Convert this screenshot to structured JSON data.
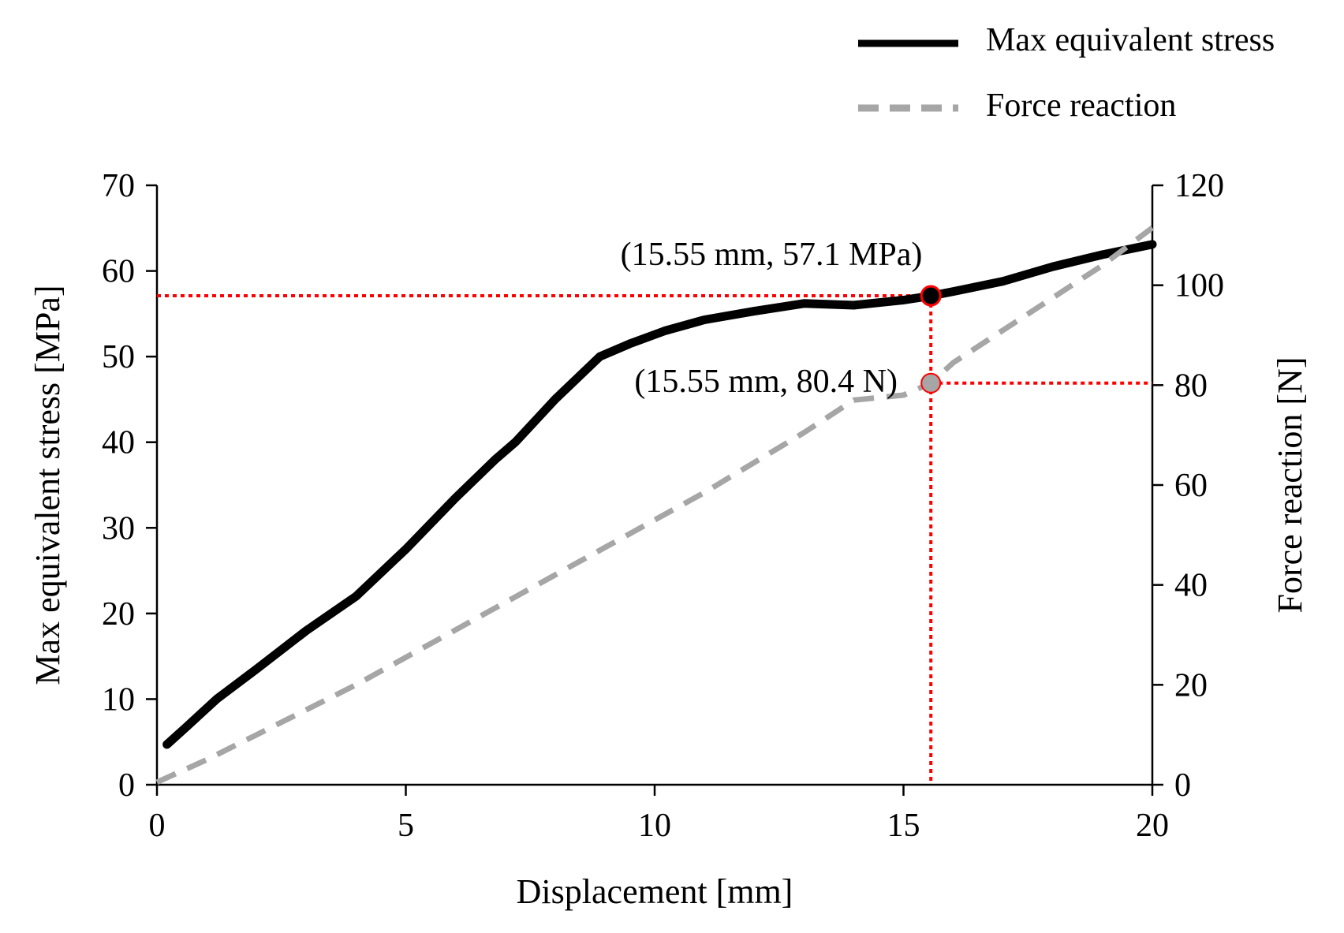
{
  "chart_data": {
    "type": "line",
    "xlabel": "Displacement [mm]",
    "ylabel": "Max equivalent stress [MPa]",
    "y2label": "Force reaction [N]",
    "xlim": [
      0,
      20
    ],
    "ylim": [
      0,
      70
    ],
    "y2lim": [
      0,
      120
    ],
    "x_ticks": [
      0,
      5,
      10,
      15,
      20
    ],
    "y_ticks": [
      0,
      10,
      20,
      30,
      40,
      50,
      60,
      70
    ],
    "y2_ticks": [
      0,
      20,
      40,
      60,
      80,
      100,
      120
    ],
    "grid": false,
    "legend_position": "top-right",
    "series": [
      {
        "name": "Max equivalent stress",
        "axis": "left",
        "style": "solid",
        "color": "#000000",
        "x": [
          0.2,
          0.6,
          1.2,
          2.0,
          3.0,
          4.0,
          5.0,
          6.0,
          6.8,
          7.2,
          8.0,
          8.9,
          9.5,
          10.2,
          11.0,
          12.0,
          13.0,
          14.0,
          15.0,
          15.55,
          16.0,
          17.0,
          18.0,
          19.0,
          20.0
        ],
        "y": [
          4.7,
          6.8,
          10.0,
          13.5,
          18.0,
          22.0,
          27.5,
          33.5,
          38.0,
          40.0,
          45.0,
          50.0,
          51.5,
          53.0,
          54.3,
          55.3,
          56.2,
          56.0,
          56.6,
          57.1,
          57.6,
          58.8,
          60.5,
          61.9,
          63.1
        ]
      },
      {
        "name": "Force reaction",
        "axis": "right",
        "style": "dashed",
        "color": "#a6a6a6",
        "x": [
          0.0,
          1.0,
          2.0,
          3.0,
          4.0,
          5.0,
          6.0,
          7.0,
          8.0,
          9.0,
          10.0,
          11.0,
          12.0,
          13.0,
          14.0,
          15.0,
          15.55,
          16.0,
          17.0,
          18.0,
          19.0,
          20.0
        ],
        "y": [
          0.5,
          5.0,
          10.0,
          15.0,
          20.0,
          25.5,
          31.0,
          36.5,
          42.0,
          47.5,
          53.0,
          58.5,
          64.5,
          70.5,
          77.0,
          78.0,
          80.4,
          84.5,
          91.0,
          97.5,
          104.0,
          111.5
        ]
      }
    ],
    "annotations": [
      {
        "label": "(15.55 mm, 57.1 MPa)",
        "x": 15.55,
        "y": 57.1,
        "axis": "left",
        "marker_color": "#000000"
      },
      {
        "label": "(15.55 mm, 80.4 N)",
        "x": 15.55,
        "y": 80.4,
        "axis": "right",
        "marker_color": "#a6a6a6"
      }
    ],
    "colors": {
      "guide": "#ff0000",
      "axis": "#000000"
    }
  }
}
